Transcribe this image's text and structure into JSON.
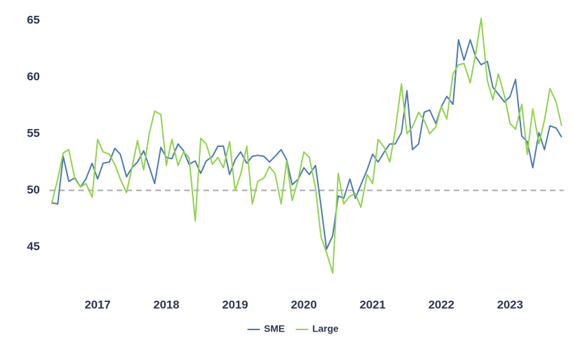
{
  "chart_data": {
    "type": "line",
    "x": [
      2016.33,
      2016.42,
      2016.5,
      2016.58,
      2016.67,
      2016.75,
      2016.83,
      2016.92,
      2017.0,
      2017.08,
      2017.17,
      2017.25,
      2017.33,
      2017.42,
      2017.5,
      2017.58,
      2017.67,
      2017.75,
      2017.83,
      2017.92,
      2018.0,
      2018.08,
      2018.17,
      2018.25,
      2018.33,
      2018.42,
      2018.5,
      2018.58,
      2018.67,
      2018.75,
      2018.83,
      2018.92,
      2019.0,
      2019.08,
      2019.17,
      2019.25,
      2019.33,
      2019.42,
      2019.5,
      2019.58,
      2019.67,
      2019.75,
      2019.83,
      2019.92,
      2020.0,
      2020.08,
      2020.17,
      2020.25,
      2020.33,
      2020.42,
      2020.5,
      2020.58,
      2020.67,
      2020.75,
      2020.83,
      2020.92,
      2021.0,
      2021.08,
      2021.17,
      2021.25,
      2021.33,
      2021.42,
      2021.5,
      2021.58,
      2021.67,
      2021.75,
      2021.83,
      2021.92,
      2022.0,
      2022.08,
      2022.17,
      2022.25,
      2022.33,
      2022.42,
      2022.5,
      2022.58,
      2022.67,
      2022.75,
      2022.83,
      2022.92,
      2023.0,
      2023.08,
      2023.17,
      2023.25,
      2023.33,
      2023.42,
      2023.5,
      2023.58,
      2023.67,
      2023.75
    ],
    "series": [
      {
        "name": "SME",
        "color": "#4a78b3",
        "values": [
          48.9,
          48.8,
          53.0,
          50.8,
          51.1,
          50.3,
          51,
          52.4,
          51,
          52.4,
          52.5,
          53.7,
          53.2,
          51.2,
          52,
          52.5,
          53.5,
          52.1,
          50.6,
          53.8,
          52.9,
          52.8,
          54.1,
          53.5,
          52.3,
          52.6,
          51.5,
          52.6,
          53,
          53.9,
          53.9,
          51.4,
          52.7,
          53.4,
          52.4,
          53,
          53.1,
          53,
          52.5,
          53,
          53.6,
          52.7,
          50.5,
          51,
          52,
          51.4,
          52.2,
          48.6,
          44.8,
          46,
          49.5,
          49.3,
          51,
          49.3,
          50.5,
          51.8,
          53.2,
          52.5,
          53.4,
          54.1,
          54.1,
          55.1,
          58.8,
          53.6,
          54.1,
          56.9,
          57.1,
          55.9,
          57.4,
          58.3,
          57.6,
          63.3,
          61.5,
          63.3,
          61.8,
          61.1,
          61.4,
          59.1,
          58.5,
          57.8,
          58.3,
          59.8,
          54.8,
          54.3,
          52,
          55.1,
          53.6,
          55.7,
          55.5,
          54.7
        ]
      },
      {
        "name": "Large",
        "color": "#8ed34b",
        "values": [
          48.8,
          51,
          53.3,
          53.6,
          51,
          50.3,
          50.6,
          49.4,
          54.5,
          53.4,
          53.2,
          52.3,
          51,
          49.8,
          52,
          54.4,
          51.8,
          55,
          57,
          56.7,
          52.2,
          54.5,
          52.2,
          53.4,
          52.9,
          47.3,
          54.6,
          54.1,
          52.3,
          52.9,
          52,
          54.3,
          50,
          51.4,
          53.9,
          48.8,
          50.8,
          51.1,
          52.1,
          51.5,
          48.8,
          52.6,
          49.1,
          51,
          53.4,
          52.9,
          50.2,
          45.9,
          44.5,
          42.7,
          51.5,
          48.8,
          49.5,
          49.7,
          48.5,
          51.4,
          50.6,
          54.5,
          53.8,
          52.5,
          55.3,
          59.4,
          55,
          55.6,
          56.9,
          56.2,
          55,
          55.6,
          57.4,
          56.3,
          60.3,
          61.1,
          61.2,
          59.5,
          62.1,
          65.2,
          59.7,
          58,
          60.3,
          58.3,
          55.9,
          55.4,
          57.6,
          53.2,
          57.2,
          54.1,
          56.2,
          59,
          57.8,
          55.7
        ]
      }
    ],
    "xlim": [
      2016.3,
      2023.78
    ],
    "xticks": [
      2017,
      2018,
      2019,
      2020,
      2021,
      2022,
      2023
    ],
    "ylim": [
      42.5,
      66
    ],
    "yticks": [
      45,
      50,
      55,
      60,
      65
    ],
    "reference_line": 50,
    "legend": "bottom"
  }
}
